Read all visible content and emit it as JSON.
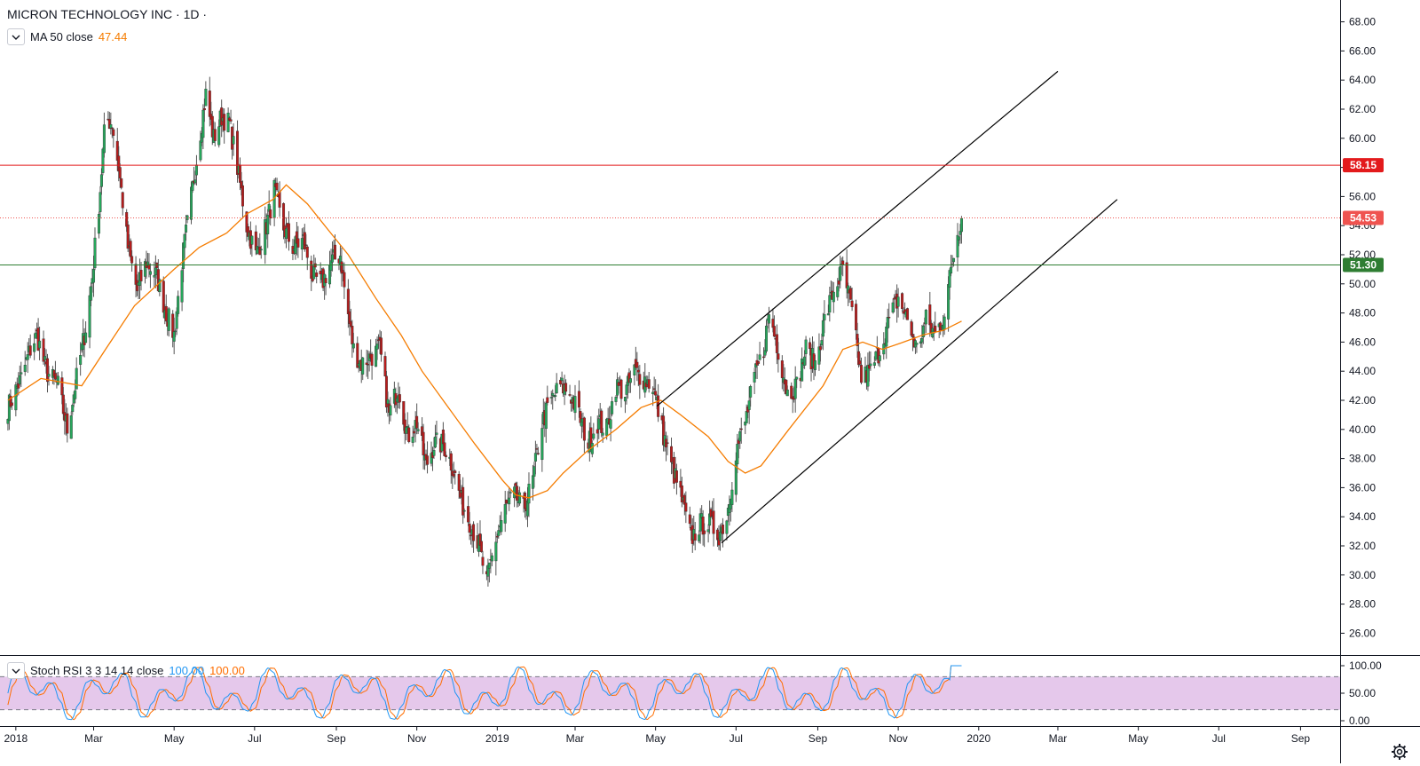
{
  "header": {
    "title": "MICRON TECHNOLOGY INC · 1D ·",
    "ma_label": "MA 50 close",
    "ma_value": "47.44"
  },
  "stoch_legend": {
    "label": "Stoch RSI 3 3 14 14 close",
    "k_value": "100.00",
    "d_value": "100.00"
  },
  "price_lines": [
    {
      "name": "resistance",
      "value": 58.15,
      "label": "58.15",
      "color": "#e31a1c",
      "style": "solid"
    },
    {
      "name": "last-price",
      "value": 54.53,
      "label": "54.53",
      "color": "#ef5350",
      "style": "dotted"
    },
    {
      "name": "support",
      "value": 51.3,
      "label": "51.30",
      "color": "#2e7d32",
      "style": "solid"
    }
  ],
  "colors": {
    "up": "#26a65b",
    "down": "#b71c1c",
    "ma": "#f57c00",
    "stoch_k": "#2196f3",
    "stoch_d": "#ff6d00",
    "stoch_band": "#e1bee7"
  },
  "chart_data": {
    "type": "candlestick",
    "symbol": "MICRON TECHNOLOGY INC",
    "interval": "1D",
    "y_axis": {
      "min": 24.5,
      "max": 69.5,
      "ticks": [
        "26.00",
        "28.00",
        "30.00",
        "32.00",
        "34.00",
        "36.00",
        "38.00",
        "40.00",
        "42.00",
        "44.00",
        "46.00",
        "48.00",
        "50.00",
        "52.00",
        "54.00",
        "56.00",
        "58.00",
        "60.00",
        "62.00",
        "64.00",
        "66.00",
        "68.00"
      ]
    },
    "x_axis": {
      "labels": [
        {
          "label": "2018",
          "date": "2018-01-01"
        },
        {
          "label": "Mar",
          "date": "2018-03-01"
        },
        {
          "label": "May",
          "date": "2018-05-01"
        },
        {
          "label": "Jul",
          "date": "2018-07-01"
        },
        {
          "label": "Sep",
          "date": "2018-09-01"
        },
        {
          "label": "Nov",
          "date": "2018-11-01"
        },
        {
          "label": "2019",
          "date": "2019-01-01"
        },
        {
          "label": "Mar",
          "date": "2019-03-01"
        },
        {
          "label": "May",
          "date": "2019-05-01"
        },
        {
          "label": "Jul",
          "date": "2019-07-01"
        },
        {
          "label": "Sep",
          "date": "2019-09-01"
        },
        {
          "label": "Nov",
          "date": "2019-11-01"
        },
        {
          "label": "2020",
          "date": "2020-01-01"
        },
        {
          "label": "Mar",
          "date": "2020-03-01"
        },
        {
          "label": "May",
          "date": "2020-05-01"
        },
        {
          "label": "Jul",
          "date": "2020-07-01"
        },
        {
          "label": "Sep",
          "date": "2020-09-01"
        }
      ]
    },
    "price_path": [
      [
        "2017-12-26",
        41.5
      ],
      [
        "2018-01-05",
        43.5
      ],
      [
        "2018-01-12",
        45.5
      ],
      [
        "2018-01-17",
        46.5
      ],
      [
        "2018-01-24",
        44.0
      ],
      [
        "2018-02-02",
        43.0
      ],
      [
        "2018-02-09",
        40.0
      ],
      [
        "2018-02-16",
        43.5
      ],
      [
        "2018-02-23",
        47.0
      ],
      [
        "2018-02-28",
        50.5
      ],
      [
        "2018-03-06",
        56.5
      ],
      [
        "2018-03-10",
        61.5
      ],
      [
        "2018-03-15",
        61.0
      ],
      [
        "2018-03-20",
        58.0
      ],
      [
        "2018-03-27",
        52.5
      ],
      [
        "2018-04-03",
        49.5
      ],
      [
        "2018-04-10",
        51.5
      ],
      [
        "2018-04-18",
        50.5
      ],
      [
        "2018-04-25",
        48.0
      ],
      [
        "2018-05-01",
        46.5
      ],
      [
        "2018-05-07",
        51.5
      ],
      [
        "2018-05-14",
        56.0
      ],
      [
        "2018-05-21",
        60.5
      ],
      [
        "2018-05-25",
        63.0
      ],
      [
        "2018-05-31",
        60.0
      ],
      [
        "2018-06-06",
        61.5
      ],
      [
        "2018-06-12",
        61.0
      ],
      [
        "2018-06-18",
        58.0
      ],
      [
        "2018-06-25",
        54.0
      ],
      [
        "2018-07-02",
        52.0
      ],
      [
        "2018-07-10",
        54.0
      ],
      [
        "2018-07-16",
        56.5
      ],
      [
        "2018-07-22",
        54.0
      ],
      [
        "2018-07-30",
        52.5
      ],
      [
        "2018-08-07",
        53.0
      ],
      [
        "2018-08-14",
        50.5
      ],
      [
        "2018-08-21",
        50.0
      ],
      [
        "2018-08-28",
        51.5
      ],
      [
        "2018-09-04",
        52.0
      ],
      [
        "2018-09-08",
        49.0
      ],
      [
        "2018-09-14",
        45.5
      ],
      [
        "2018-09-20",
        44.5
      ],
      [
        "2018-09-27",
        45.0
      ],
      [
        "2018-10-04",
        45.5
      ],
      [
        "2018-10-11",
        41.0
      ],
      [
        "2018-10-18",
        43.0
      ],
      [
        "2018-10-25",
        39.5
      ],
      [
        "2018-11-01",
        40.5
      ],
      [
        "2018-11-08",
        37.5
      ],
      [
        "2018-11-14",
        39.0
      ],
      [
        "2018-11-21",
        39.0
      ],
      [
        "2018-11-28",
        37.5
      ],
      [
        "2018-12-05",
        35.0
      ],
      [
        "2018-12-12",
        33.5
      ],
      [
        "2018-12-18",
        32.0
      ],
      [
        "2018-12-24",
        29.5
      ],
      [
        "2018-12-31",
        32.5
      ],
      [
        "2019-01-07",
        34.5
      ],
      [
        "2019-01-14",
        35.5
      ],
      [
        "2019-01-21",
        34.5
      ],
      [
        "2019-01-28",
        36.5
      ],
      [
        "2019-02-04",
        40.5
      ],
      [
        "2019-02-11",
        42.0
      ],
      [
        "2019-02-18",
        43.0
      ],
      [
        "2019-02-25",
        42.5
      ],
      [
        "2019-03-04",
        41.0
      ],
      [
        "2019-03-11",
        39.0
      ],
      [
        "2019-03-18",
        40.5
      ],
      [
        "2019-03-25",
        40.0
      ],
      [
        "2019-04-01",
        43.0
      ],
      [
        "2019-04-08",
        42.5
      ],
      [
        "2019-04-15",
        44.0
      ],
      [
        "2019-04-22",
        43.5
      ],
      [
        "2019-04-29",
        43.0
      ],
      [
        "2019-05-06",
        40.0
      ],
      [
        "2019-05-13",
        37.5
      ],
      [
        "2019-05-20",
        35.5
      ],
      [
        "2019-05-28",
        32.5
      ],
      [
        "2019-06-04",
        33.5
      ],
      [
        "2019-06-11",
        33.5
      ],
      [
        "2019-06-18",
        32.8
      ],
      [
        "2019-06-24",
        34.0
      ],
      [
        "2019-07-01",
        38.5
      ],
      [
        "2019-07-08",
        40.5
      ],
      [
        "2019-07-15",
        43.5
      ],
      [
        "2019-07-22",
        45.5
      ],
      [
        "2019-07-26",
        48.0
      ],
      [
        "2019-08-02",
        45.5
      ],
      [
        "2019-08-09",
        42.5
      ],
      [
        "2019-08-16",
        43.0
      ],
      [
        "2019-08-23",
        45.5
      ],
      [
        "2019-08-30",
        44.5
      ],
      [
        "2019-09-06",
        47.5
      ],
      [
        "2019-09-13",
        49.5
      ],
      [
        "2019-09-20",
        51.0
      ],
      [
        "2019-09-27",
        48.0
      ],
      [
        "2019-10-04",
        43.5
      ],
      [
        "2019-10-11",
        44.0
      ],
      [
        "2019-10-18",
        45.5
      ],
      [
        "2019-10-25",
        47.5
      ],
      [
        "2019-11-01",
        49.0
      ],
      [
        "2019-11-08",
        47.5
      ],
      [
        "2019-11-15",
        45.5
      ],
      [
        "2019-11-22",
        47.5
      ],
      [
        "2019-11-29",
        46.5
      ],
      [
        "2019-12-06",
        48.0
      ],
      [
        "2019-12-12",
        51.5
      ],
      [
        "2019-12-16",
        53.5
      ],
      [
        "2019-12-19",
        54.5
      ]
    ],
    "ma50_path": [
      [
        "2017-12-26",
        42.0
      ],
      [
        "2018-01-20",
        43.5
      ],
      [
        "2018-02-20",
        43.0
      ],
      [
        "2018-03-10",
        45.5
      ],
      [
        "2018-04-01",
        48.5
      ],
      [
        "2018-05-01",
        51.0
      ],
      [
        "2018-05-20",
        52.5
      ],
      [
        "2018-06-10",
        53.5
      ],
      [
        "2018-06-25",
        54.8
      ],
      [
        "2018-07-15",
        55.8
      ],
      [
        "2018-07-25",
        56.8
      ],
      [
        "2018-08-10",
        55.5
      ],
      [
        "2018-08-25",
        53.8
      ],
      [
        "2018-09-10",
        52.0
      ],
      [
        "2018-10-01",
        49.0
      ],
      [
        "2018-10-20",
        46.5
      ],
      [
        "2018-11-05",
        44.0
      ],
      [
        "2018-11-25",
        41.5
      ],
      [
        "2018-12-15",
        39.0
      ],
      [
        "2019-01-05",
        36.5
      ],
      [
        "2019-01-15",
        35.5
      ],
      [
        "2019-01-25",
        35.3
      ],
      [
        "2019-02-08",
        35.8
      ],
      [
        "2019-02-20",
        37.0
      ],
      [
        "2019-03-10",
        38.5
      ],
      [
        "2019-04-01",
        40.0
      ],
      [
        "2019-04-20",
        41.5
      ],
      [
        "2019-05-05",
        42.0
      ],
      [
        "2019-05-20",
        41.0
      ],
      [
        "2019-06-10",
        39.5
      ],
      [
        "2019-06-25",
        37.8
      ],
      [
        "2019-07-08",
        37.0
      ],
      [
        "2019-07-20",
        37.5
      ],
      [
        "2019-08-10",
        40.0
      ],
      [
        "2019-09-05",
        43.0
      ],
      [
        "2019-09-20",
        45.5
      ],
      [
        "2019-10-05",
        46.0
      ],
      [
        "2019-10-20",
        45.5
      ],
      [
        "2019-11-05",
        46.0
      ],
      [
        "2019-11-20",
        46.5
      ],
      [
        "2019-12-05",
        46.8
      ],
      [
        "2019-12-19",
        47.44
      ]
    ],
    "trendlines": [
      {
        "name": "upper-channel",
        "start": [
          "2019-05-02",
          41.6
        ],
        "end": [
          "2020-03-01",
          64.6
        ]
      },
      {
        "name": "lower-channel",
        "start": [
          "2019-06-20",
          32.2
        ],
        "end": [
          "2020-04-15",
          55.8
        ]
      }
    ],
    "stoch_rsi": {
      "range": [
        0,
        100
      ],
      "upper_band": 80,
      "lower_band": 20,
      "ticks": [
        "0.00",
        "50.00",
        "100.00"
      ],
      "k_last": 100.0,
      "d_last": 100.0
    }
  }
}
